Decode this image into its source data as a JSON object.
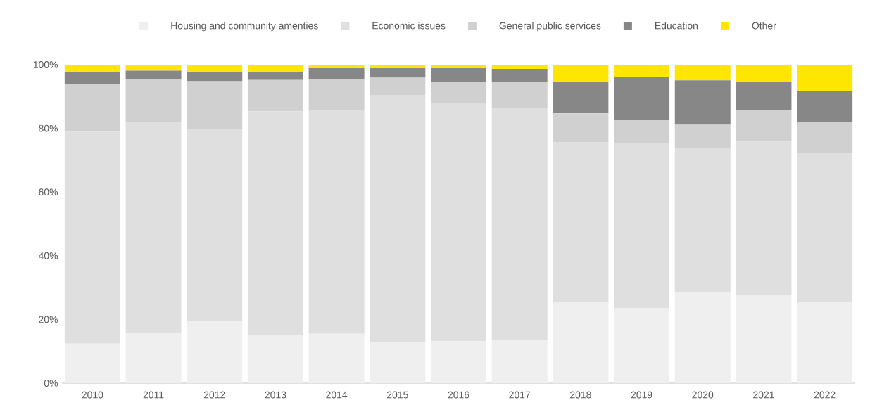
{
  "chart_data": {
    "type": "bar",
    "stacked": true,
    "legend": "top",
    "categories": [
      "2010",
      "2011",
      "2012",
      "2013",
      "2014",
      "2015",
      "2016",
      "2017",
      "2018",
      "2019",
      "2020",
      "2021",
      "2022"
    ],
    "ylim": [
      0,
      100
    ],
    "yticks": [
      {
        "value": 0,
        "label": "0%"
      },
      {
        "value": 20,
        "label": "20%"
      },
      {
        "value": 40,
        "label": "40%"
      },
      {
        "value": 60,
        "label": "60%"
      },
      {
        "value": 80,
        "label": "80%"
      },
      {
        "value": 100,
        "label": "100%"
      }
    ],
    "series": [
      {
        "name": "Housing and community amenties",
        "color": "#efefef",
        "values": [
          12.4,
          15.7,
          19.4,
          15.2,
          15.5,
          12.8,
          13.2,
          13.7,
          25.6,
          23.6,
          28.7,
          27.8,
          25.6
        ]
      },
      {
        "name": "Economic issues",
        "color": "#dfdfdf",
        "values": [
          66.6,
          66.2,
          60.3,
          70.2,
          70.2,
          77.7,
          74.9,
          72.8,
          50.1,
          51.7,
          45.1,
          48.0,
          46.6
        ]
      },
      {
        "name": "General public services",
        "color": "#d0d0d0",
        "values": [
          14.8,
          13.5,
          15.1,
          9.8,
          9.9,
          5.4,
          6.4,
          8.0,
          9.0,
          7.4,
          7.3,
          10.0,
          9.7
        ]
      },
      {
        "name": "Education",
        "color": "#878787",
        "values": [
          4.0,
          2.7,
          3.0,
          2.4,
          3.3,
          3.0,
          4.4,
          4.2,
          10.0,
          13.5,
          14.0,
          8.8,
          9.7
        ]
      },
      {
        "name": "Other",
        "color": "#ffe600",
        "values": [
          2.2,
          1.9,
          2.2,
          2.4,
          1.1,
          1.1,
          1.1,
          1.3,
          5.3,
          3.8,
          4.9,
          5.4,
          8.4
        ]
      }
    ]
  }
}
